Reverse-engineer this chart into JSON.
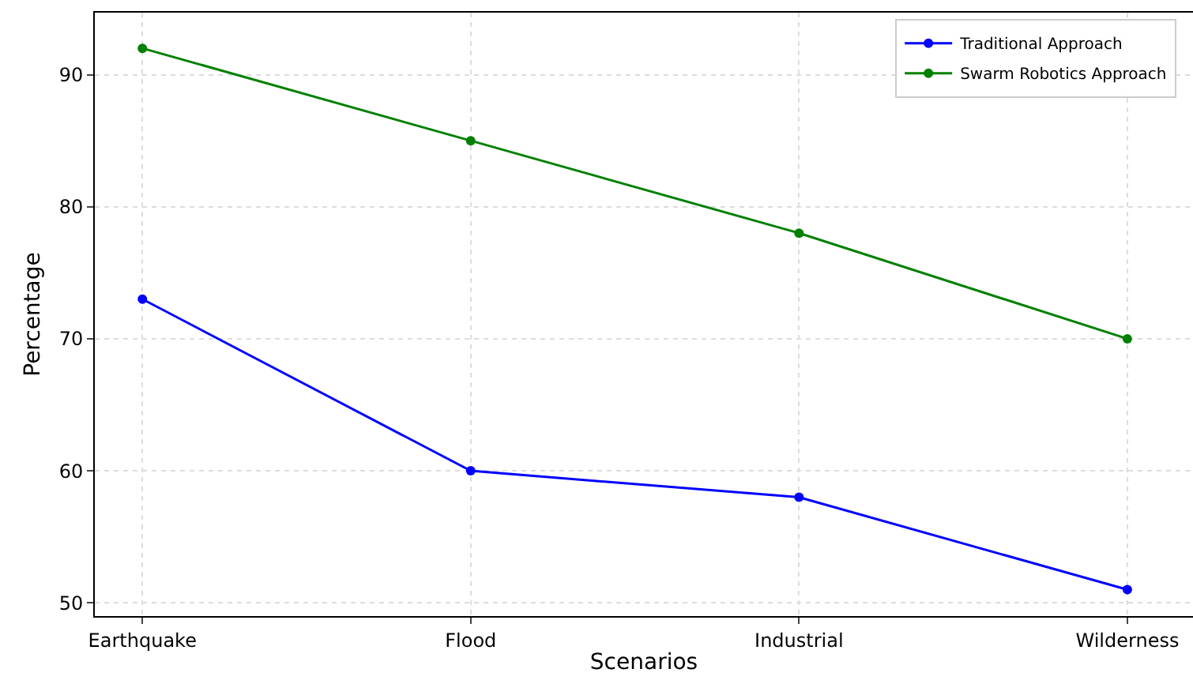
{
  "chart_data": {
    "type": "line",
    "xlabel": "Scenarios",
    "ylabel": "Percentage",
    "categories": [
      "Earthquake",
      "Flood",
      "Industrial",
      "Wilderness"
    ],
    "series": [
      {
        "name": "Traditional Approach",
        "color": "#0000ff",
        "values": [
          73,
          60,
          58,
          51
        ]
      },
      {
        "name": "Swarm Robotics Approach",
        "color": "#008000",
        "values": [
          92,
          85,
          78,
          70
        ]
      }
    ],
    "ylim": [
      49,
      94.7
    ],
    "yticks": [
      50,
      60,
      70,
      80,
      90
    ],
    "grid": true,
    "legend": "top right",
    "marker": "circle",
    "line_style": "solid"
  }
}
